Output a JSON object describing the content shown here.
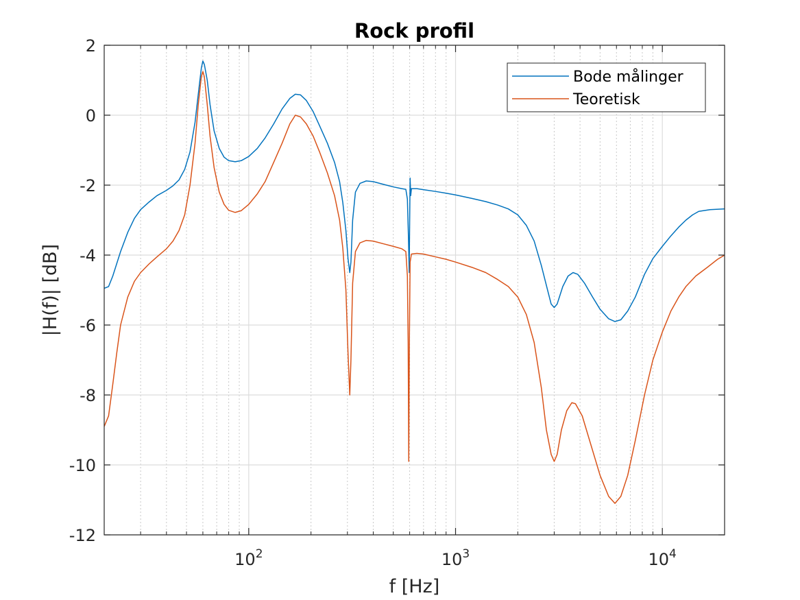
{
  "chart_data": {
    "type": "line",
    "title": "Rock profil",
    "xlabel": "f [Hz]",
    "ylabel": "|H(f)| [dB]",
    "xscale": "log",
    "xlim": [
      20,
      20000
    ],
    "ylim": [
      -12,
      2
    ],
    "xticks": [
      {
        "value": 100,
        "base": "10",
        "exp": "2"
      },
      {
        "value": 1000,
        "base": "10",
        "exp": "3"
      },
      {
        "value": 10000,
        "base": "10",
        "exp": "4"
      }
    ],
    "yticks": [
      {
        "value": 2,
        "label": "2"
      },
      {
        "value": 0,
        "label": "0"
      },
      {
        "value": -2,
        "label": "-2"
      },
      {
        "value": -4,
        "label": "-4"
      },
      {
        "value": -6,
        "label": "-6"
      },
      {
        "value": -8,
        "label": "-8"
      },
      {
        "value": -10,
        "label": "-10"
      },
      {
        "value": -12,
        "label": "-12"
      }
    ],
    "grid": true,
    "minor_grid": true,
    "legend_position": "top-right",
    "series": [
      {
        "name": "Bode målinger",
        "color": "#0072BD",
        "points": [
          [
            20,
            -4.95
          ],
          [
            21,
            -4.9
          ],
          [
            22,
            -4.6
          ],
          [
            24,
            -3.9
          ],
          [
            26,
            -3.35
          ],
          [
            28,
            -2.95
          ],
          [
            30,
            -2.7
          ],
          [
            33,
            -2.48
          ],
          [
            36,
            -2.3
          ],
          [
            40,
            -2.15
          ],
          [
            43,
            -2.02
          ],
          [
            46,
            -1.85
          ],
          [
            49,
            -1.55
          ],
          [
            52,
            -1.05
          ],
          [
            55,
            -0.2
          ],
          [
            57,
            0.6
          ],
          [
            59,
            1.35
          ],
          [
            60,
            1.55
          ],
          [
            61,
            1.45
          ],
          [
            63,
            1.0
          ],
          [
            65,
            0.3
          ],
          [
            68,
            -0.45
          ],
          [
            72,
            -0.95
          ],
          [
            76,
            -1.2
          ],
          [
            80,
            -1.3
          ],
          [
            86,
            -1.33
          ],
          [
            92,
            -1.3
          ],
          [
            100,
            -1.18
          ],
          [
            110,
            -0.95
          ],
          [
            120,
            -0.65
          ],
          [
            132,
            -0.25
          ],
          [
            145,
            0.18
          ],
          [
            158,
            0.48
          ],
          [
            168,
            0.6
          ],
          [
            178,
            0.58
          ],
          [
            190,
            0.42
          ],
          [
            205,
            0.1
          ],
          [
            220,
            -0.3
          ],
          [
            240,
            -0.8
          ],
          [
            260,
            -1.35
          ],
          [
            275,
            -1.9
          ],
          [
            285,
            -2.5
          ],
          [
            295,
            -3.3
          ],
          [
            302,
            -4.1
          ],
          [
            308,
            -4.5
          ],
          [
            312,
            -4.2
          ],
          [
            318,
            -3.0
          ],
          [
            328,
            -2.2
          ],
          [
            345,
            -1.95
          ],
          [
            370,
            -1.88
          ],
          [
            400,
            -1.9
          ],
          [
            450,
            -1.98
          ],
          [
            500,
            -2.05
          ],
          [
            550,
            -2.1
          ],
          [
            575,
            -2.12
          ],
          [
            585,
            -2.4
          ],
          [
            592,
            -3.5
          ],
          [
            597,
            -4.5
          ],
          [
            600,
            -3.0
          ],
          [
            603,
            -1.8
          ],
          [
            607,
            -2.3
          ],
          [
            612,
            -2.1
          ],
          [
            650,
            -2.1
          ],
          [
            700,
            -2.13
          ],
          [
            800,
            -2.18
          ],
          [
            900,
            -2.23
          ],
          [
            1000,
            -2.28
          ],
          [
            1200,
            -2.38
          ],
          [
            1400,
            -2.47
          ],
          [
            1600,
            -2.57
          ],
          [
            1800,
            -2.68
          ],
          [
            2000,
            -2.85
          ],
          [
            2200,
            -3.15
          ],
          [
            2400,
            -3.6
          ],
          [
            2600,
            -4.3
          ],
          [
            2800,
            -5.05
          ],
          [
            2900,
            -5.4
          ],
          [
            3000,
            -5.5
          ],
          [
            3100,
            -5.4
          ],
          [
            3300,
            -4.9
          ],
          [
            3500,
            -4.6
          ],
          [
            3700,
            -4.5
          ],
          [
            3900,
            -4.55
          ],
          [
            4200,
            -4.8
          ],
          [
            4600,
            -5.2
          ],
          [
            5000,
            -5.55
          ],
          [
            5500,
            -5.82
          ],
          [
            5900,
            -5.9
          ],
          [
            6300,
            -5.85
          ],
          [
            6800,
            -5.6
          ],
          [
            7400,
            -5.2
          ],
          [
            8200,
            -4.55
          ],
          [
            9000,
            -4.1
          ],
          [
            10000,
            -3.75
          ],
          [
            11000,
            -3.45
          ],
          [
            12000,
            -3.2
          ],
          [
            13000,
            -3.0
          ],
          [
            14000,
            -2.85
          ],
          [
            15000,
            -2.75
          ],
          [
            17000,
            -2.7
          ],
          [
            20000,
            -2.68
          ]
        ]
      },
      {
        "name": "Teoretisk",
        "color": "#D95319",
        "points": [
          [
            20,
            -8.9
          ],
          [
            21,
            -8.6
          ],
          [
            22,
            -7.7
          ],
          [
            23,
            -6.8
          ],
          [
            24,
            -6.0
          ],
          [
            26,
            -5.2
          ],
          [
            28,
            -4.75
          ],
          [
            30,
            -4.5
          ],
          [
            33,
            -4.25
          ],
          [
            36,
            -4.05
          ],
          [
            40,
            -3.82
          ],
          [
            43,
            -3.6
          ],
          [
            46,
            -3.3
          ],
          [
            49,
            -2.85
          ],
          [
            52,
            -2.0
          ],
          [
            55,
            -0.8
          ],
          [
            57,
            0.3
          ],
          [
            59,
            1.1
          ],
          [
            60,
            1.25
          ],
          [
            61,
            1.1
          ],
          [
            63,
            0.3
          ],
          [
            65,
            -0.6
          ],
          [
            68,
            -1.5
          ],
          [
            72,
            -2.2
          ],
          [
            76,
            -2.55
          ],
          [
            80,
            -2.72
          ],
          [
            86,
            -2.78
          ],
          [
            92,
            -2.73
          ],
          [
            100,
            -2.55
          ],
          [
            110,
            -2.25
          ],
          [
            120,
            -1.9
          ],
          [
            132,
            -1.35
          ],
          [
            145,
            -0.8
          ],
          [
            158,
            -0.25
          ],
          [
            168,
            0.0
          ],
          [
            178,
            -0.05
          ],
          [
            190,
            -0.25
          ],
          [
            205,
            -0.6
          ],
          [
            220,
            -1.05
          ],
          [
            240,
            -1.65
          ],
          [
            260,
            -2.3
          ],
          [
            275,
            -3.0
          ],
          [
            285,
            -3.8
          ],
          [
            295,
            -5.0
          ],
          [
            302,
            -6.8
          ],
          [
            308,
            -8.0
          ],
          [
            312,
            -7.0
          ],
          [
            318,
            -4.8
          ],
          [
            328,
            -3.9
          ],
          [
            345,
            -3.65
          ],
          [
            370,
            -3.58
          ],
          [
            400,
            -3.6
          ],
          [
            450,
            -3.68
          ],
          [
            500,
            -3.75
          ],
          [
            550,
            -3.82
          ],
          [
            575,
            -3.9
          ],
          [
            585,
            -4.6
          ],
          [
            590,
            -6.5
          ],
          [
            594,
            -9.9
          ],
          [
            598,
            -6.5
          ],
          [
            603,
            -4.2
          ],
          [
            612,
            -3.97
          ],
          [
            650,
            -3.95
          ],
          [
            700,
            -3.97
          ],
          [
            800,
            -4.05
          ],
          [
            900,
            -4.12
          ],
          [
            1000,
            -4.2
          ],
          [
            1200,
            -4.35
          ],
          [
            1400,
            -4.5
          ],
          [
            1600,
            -4.7
          ],
          [
            1800,
            -4.9
          ],
          [
            2000,
            -5.2
          ],
          [
            2200,
            -5.7
          ],
          [
            2400,
            -6.5
          ],
          [
            2600,
            -7.8
          ],
          [
            2750,
            -9.0
          ],
          [
            2900,
            -9.7
          ],
          [
            3000,
            -9.9
          ],
          [
            3100,
            -9.7
          ],
          [
            3250,
            -9.0
          ],
          [
            3450,
            -8.45
          ],
          [
            3650,
            -8.22
          ],
          [
            3800,
            -8.25
          ],
          [
            4100,
            -8.6
          ],
          [
            4500,
            -9.4
          ],
          [
            5000,
            -10.3
          ],
          [
            5500,
            -10.9
          ],
          [
            5900,
            -11.1
          ],
          [
            6300,
            -10.9
          ],
          [
            6800,
            -10.3
          ],
          [
            7400,
            -9.3
          ],
          [
            8200,
            -8.0
          ],
          [
            9000,
            -7.0
          ],
          [
            10000,
            -6.2
          ],
          [
            11000,
            -5.6
          ],
          [
            12000,
            -5.2
          ],
          [
            13000,
            -4.9
          ],
          [
            14500,
            -4.6
          ],
          [
            16500,
            -4.35
          ],
          [
            18500,
            -4.12
          ],
          [
            20000,
            -4.0
          ]
        ]
      }
    ]
  }
}
